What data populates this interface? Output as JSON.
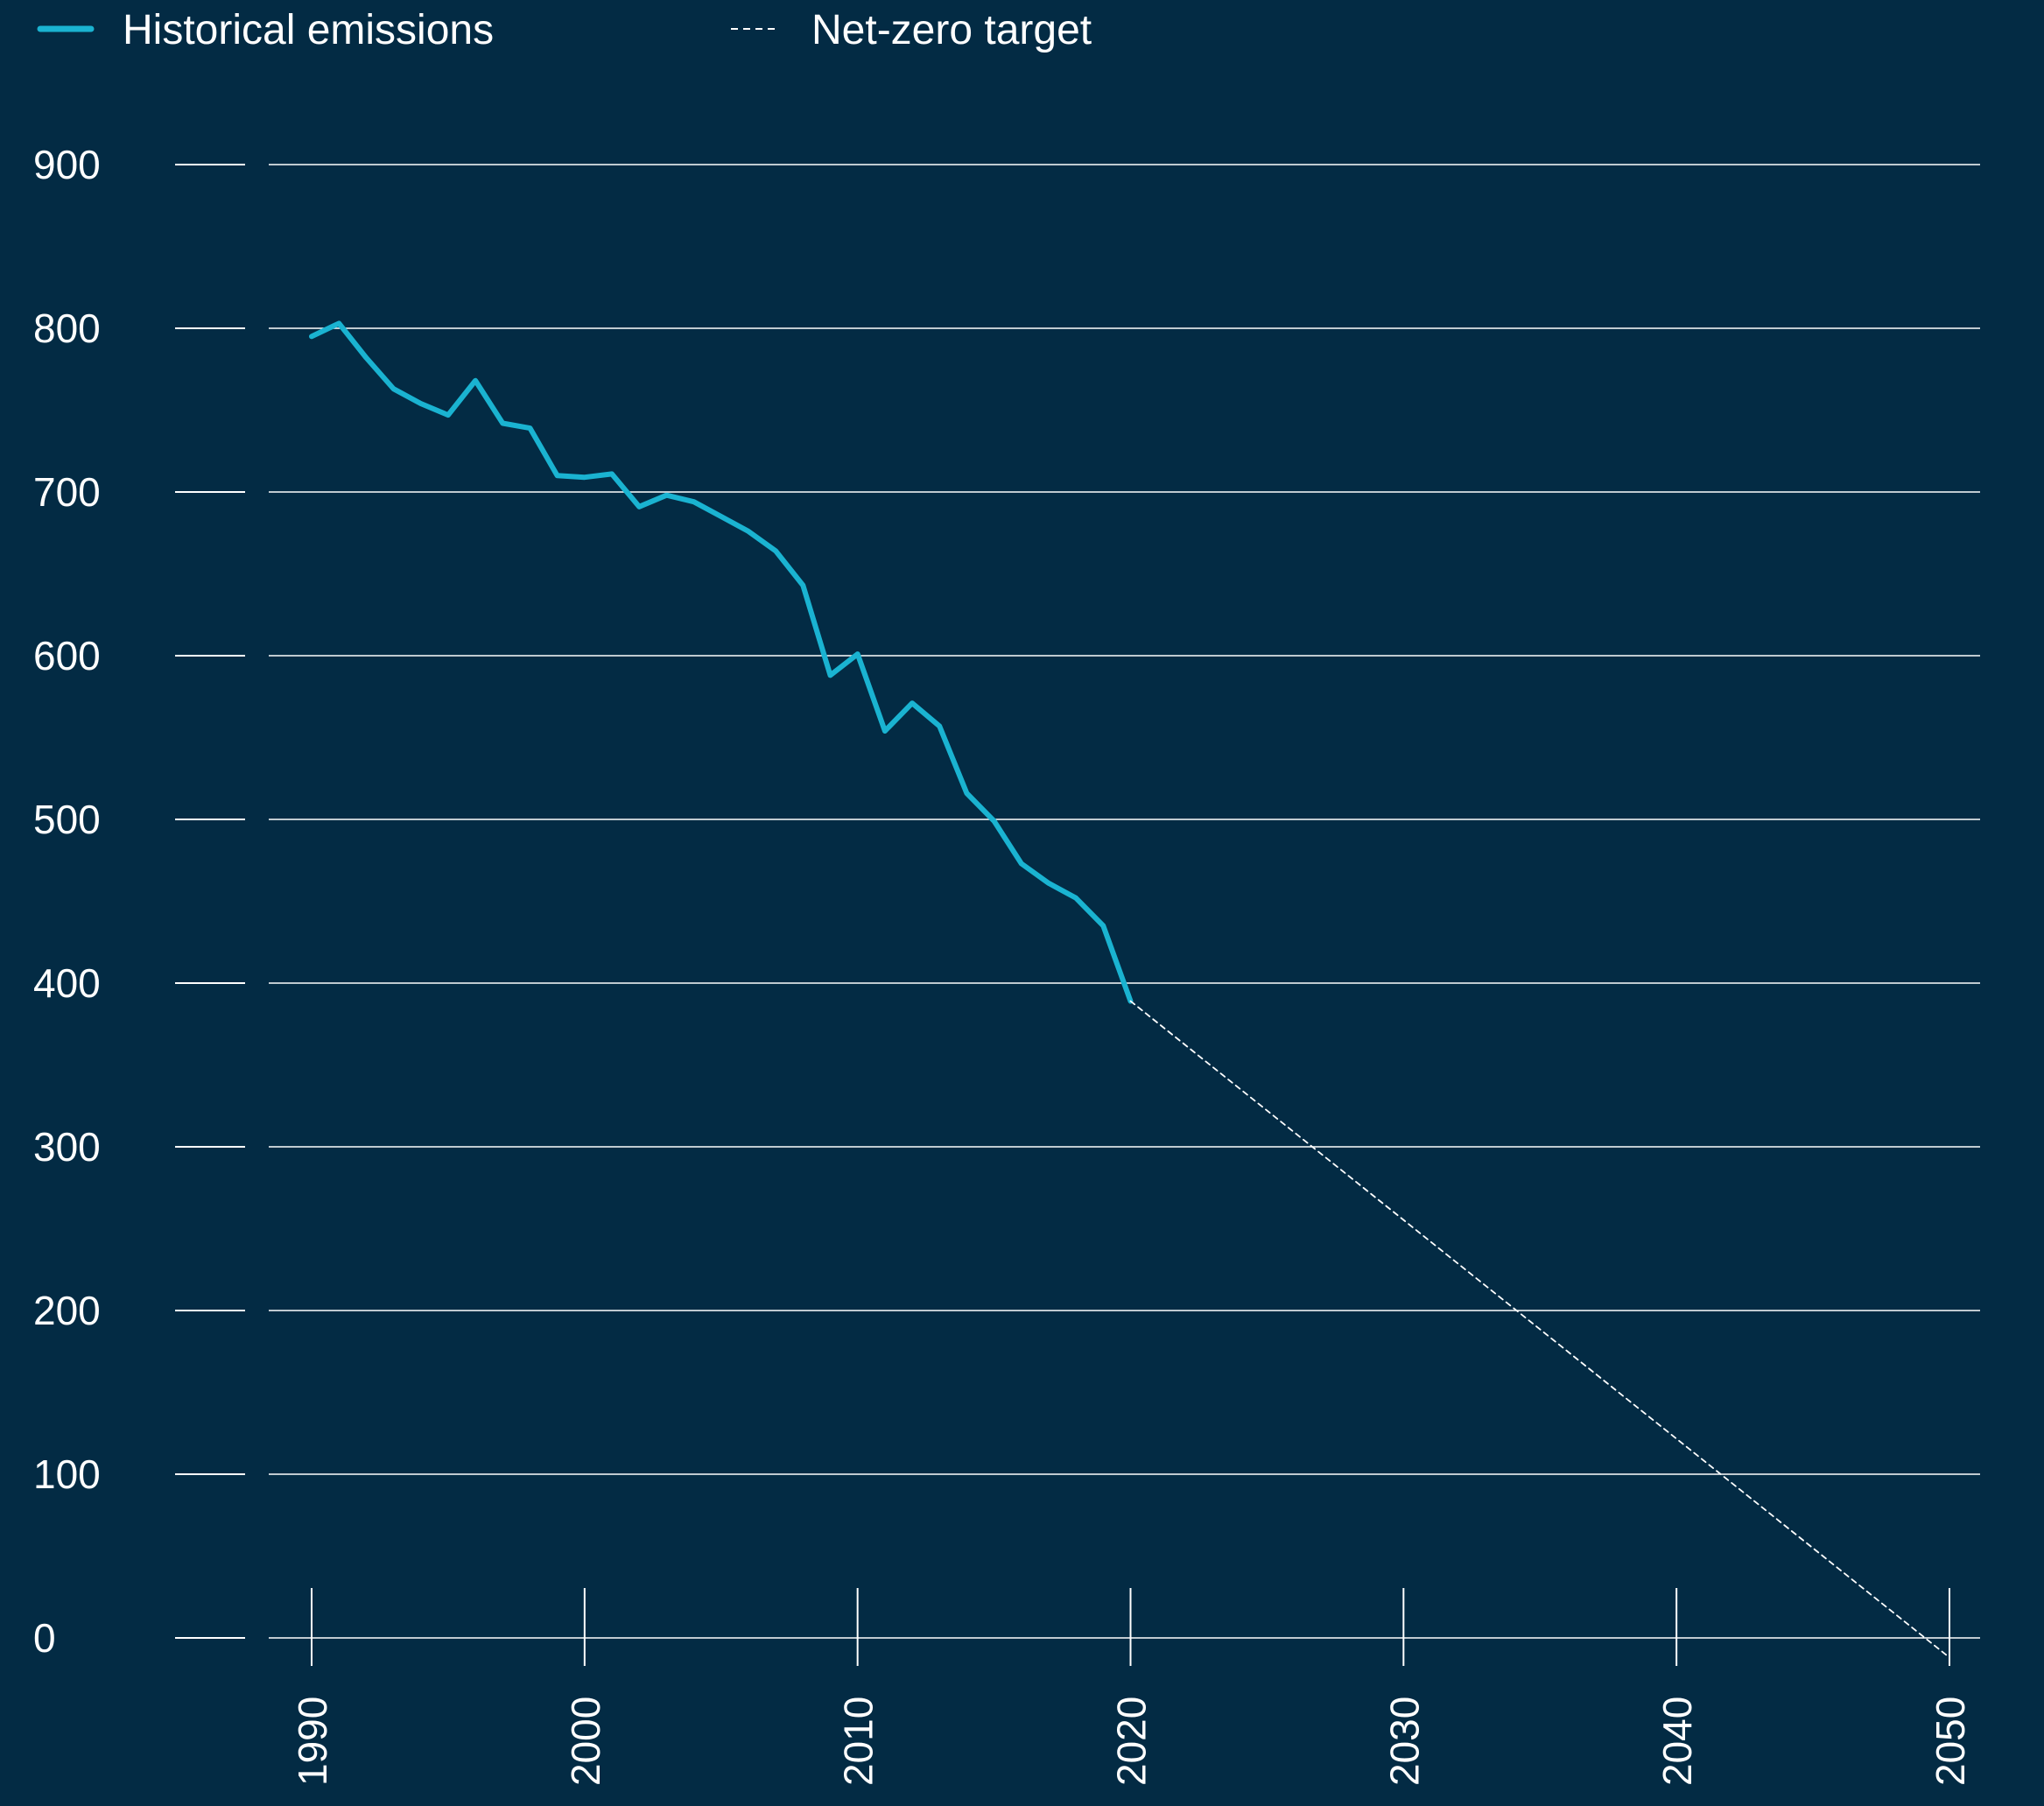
{
  "colors": {
    "background": "#032b44",
    "historical": "#1ab3d1",
    "target": "#ffffff",
    "grid": "#ffffff",
    "text": "#ffffff"
  },
  "legend": {
    "historical_label": "Historical emissions",
    "target_label": "Net-zero target"
  },
  "chart_data": {
    "type": "line",
    "title": "",
    "xlabel": "",
    "ylabel": "",
    "xlim": [
      1985,
      2051
    ],
    "ylim": [
      0,
      900
    ],
    "grid": true,
    "legend_position": "top-left",
    "y_ticks": [
      0,
      100,
      200,
      300,
      400,
      500,
      600,
      700,
      800,
      900
    ],
    "x_ticks": [
      1990,
      2000,
      2010,
      2020,
      2030,
      2040,
      2050
    ],
    "series": [
      {
        "name": "Historical emissions",
        "style": "solid",
        "x": [
          1990,
          1991,
          1992,
          1993,
          1994,
          1995,
          1996,
          1997,
          1998,
          1999,
          2000,
          2001,
          2002,
          2003,
          2004,
          2005,
          2006,
          2007,
          2008,
          2009,
          2010,
          2011,
          2012,
          2013,
          2014,
          2015,
          2016,
          2017,
          2018,
          2019,
          2020
        ],
        "values": [
          795,
          803,
          782,
          763,
          754,
          747,
          768,
          742,
          739,
          710,
          709,
          711,
          691,
          698,
          694,
          685,
          676,
          664,
          643,
          588,
          601,
          554,
          571,
          557,
          516,
          499,
          473,
          461,
          452,
          435,
          389
        ]
      },
      {
        "name": "Net-zero target",
        "style": "dashed",
        "x": [
          2020,
          2050
        ],
        "values": [
          389,
          -12
        ]
      }
    ]
  }
}
